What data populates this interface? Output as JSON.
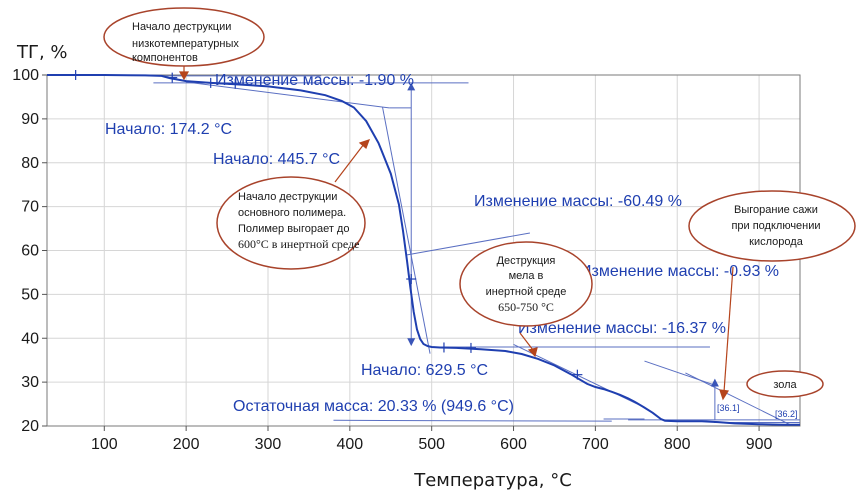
{
  "chart_data": {
    "type": "line",
    "ylabel": "ТГ, %",
    "xlabel": "Температура, °C",
    "xlim": [
      30,
      950
    ],
    "ylim": [
      20,
      100
    ],
    "x_ticks": [
      100,
      200,
      300,
      400,
      500,
      600,
      700,
      800,
      900
    ],
    "y_ticks": [
      20,
      30,
      40,
      50,
      60,
      70,
      80,
      90,
      100
    ],
    "grid": true,
    "series": [
      {
        "x": [
          30,
          100,
          150,
          170,
          180,
          200,
          230,
          260,
          300,
          340,
          370,
          390,
          405,
          420,
          435,
          450,
          460,
          465,
          470,
          474,
          478,
          482,
          486,
          490,
          495,
          500,
          510,
          530,
          560,
          590,
          610,
          630,
          650,
          670,
          690,
          700,
          710,
          720,
          730,
          740,
          750,
          760,
          770,
          780,
          785,
          800,
          830,
          850,
          870,
          900,
          930,
          950
        ],
        "values": [
          100,
          100,
          99.9,
          99.8,
          99.3,
          98.6,
          98.2,
          97.9,
          97.4,
          96.5,
          95.4,
          94.1,
          92.6,
          89.5,
          84.5,
          77.5,
          70.5,
          64.5,
          57.5,
          51.5,
          46,
          42,
          39.8,
          38.7,
          38.2,
          38,
          37.9,
          37.8,
          37.5,
          37.1,
          36.4,
          35.3,
          33.8,
          31.8,
          29.6,
          28.9,
          28.4,
          27.8,
          27.1,
          26.3,
          25.3,
          24.2,
          23,
          21.6,
          21.2,
          21.1,
          21.1,
          20.9,
          20.6,
          20.4,
          20.3,
          20.3
        ]
      }
    ],
    "annotations": [
      {
        "text": "Изменение массы: -1.90 %"
      },
      {
        "text": "Начало: 174.2 °C"
      },
      {
        "text": "Начало: 445.7 °C"
      },
      {
        "text": "Изменение массы: -60.49 %"
      },
      {
        "text": "Изменение массы: -0.93 %"
      },
      {
        "text": "Изменение массы: -16.37 %"
      },
      {
        "text": "Начало: 629.5 °C"
      },
      {
        "text": "Остаточная масса: 20.33 % (949.6 °C)"
      },
      {
        "text": "[36.1]"
      },
      {
        "text": "[36.2]"
      }
    ],
    "bubbles": [
      {
        "lines": [
          "Начало деструкции",
          "низкотемпературных",
          "компонентов"
        ]
      },
      {
        "lines": [
          "Начало деструкции",
          "основного полимера.",
          "Полимер выгорает до",
          "600°C в инертной среде"
        ]
      },
      {
        "lines": [
          "Деструкция",
          "мела в",
          "инертной среде",
          "650-750 °C"
        ]
      },
      {
        "lines": [
          "Выгорание сажи",
          "при подключении",
          "кислорода"
        ]
      },
      {
        "lines": [
          "зола"
        ]
      }
    ]
  }
}
